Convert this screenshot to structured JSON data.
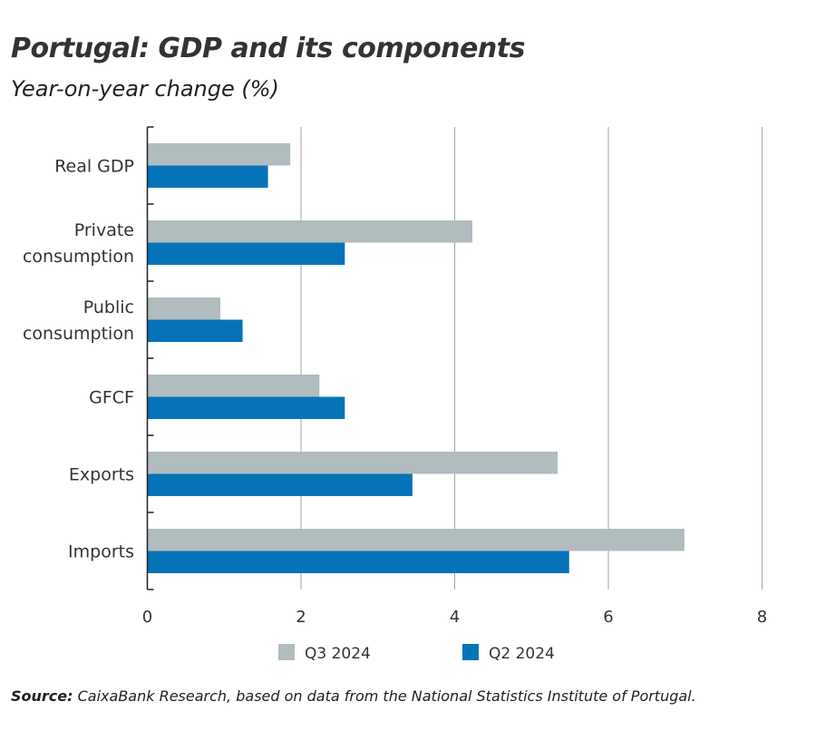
{
  "title": "Portugal: GDP and its components",
  "subtitle": "Year-on-year change (%)",
  "source_label": "Source:",
  "source_text": "CaixaBank Research, based on data from the National Statistics Institute of Portugal.",
  "chart_data": {
    "type": "bar",
    "orientation": "horizontal",
    "categories": [
      "Real GDP",
      "Private consumption",
      "Public consumption",
      "GFCF",
      "Exports",
      "Imports"
    ],
    "series": [
      {
        "name": "Q3 2024",
        "color": "#b1bcbf",
        "values": [
          1.86,
          4.23,
          0.95,
          2.24,
          5.34,
          6.99
        ]
      },
      {
        "name": "Q2 2024",
        "color": "#0673b9",
        "values": [
          1.57,
          2.57,
          1.24,
          2.57,
          3.45,
          5.49
        ]
      }
    ],
    "xlim": [
      0,
      8
    ],
    "xticks": [
      "0",
      "2",
      "4",
      "6",
      "8"
    ],
    "grid": "vertical",
    "legend": "bottom"
  }
}
